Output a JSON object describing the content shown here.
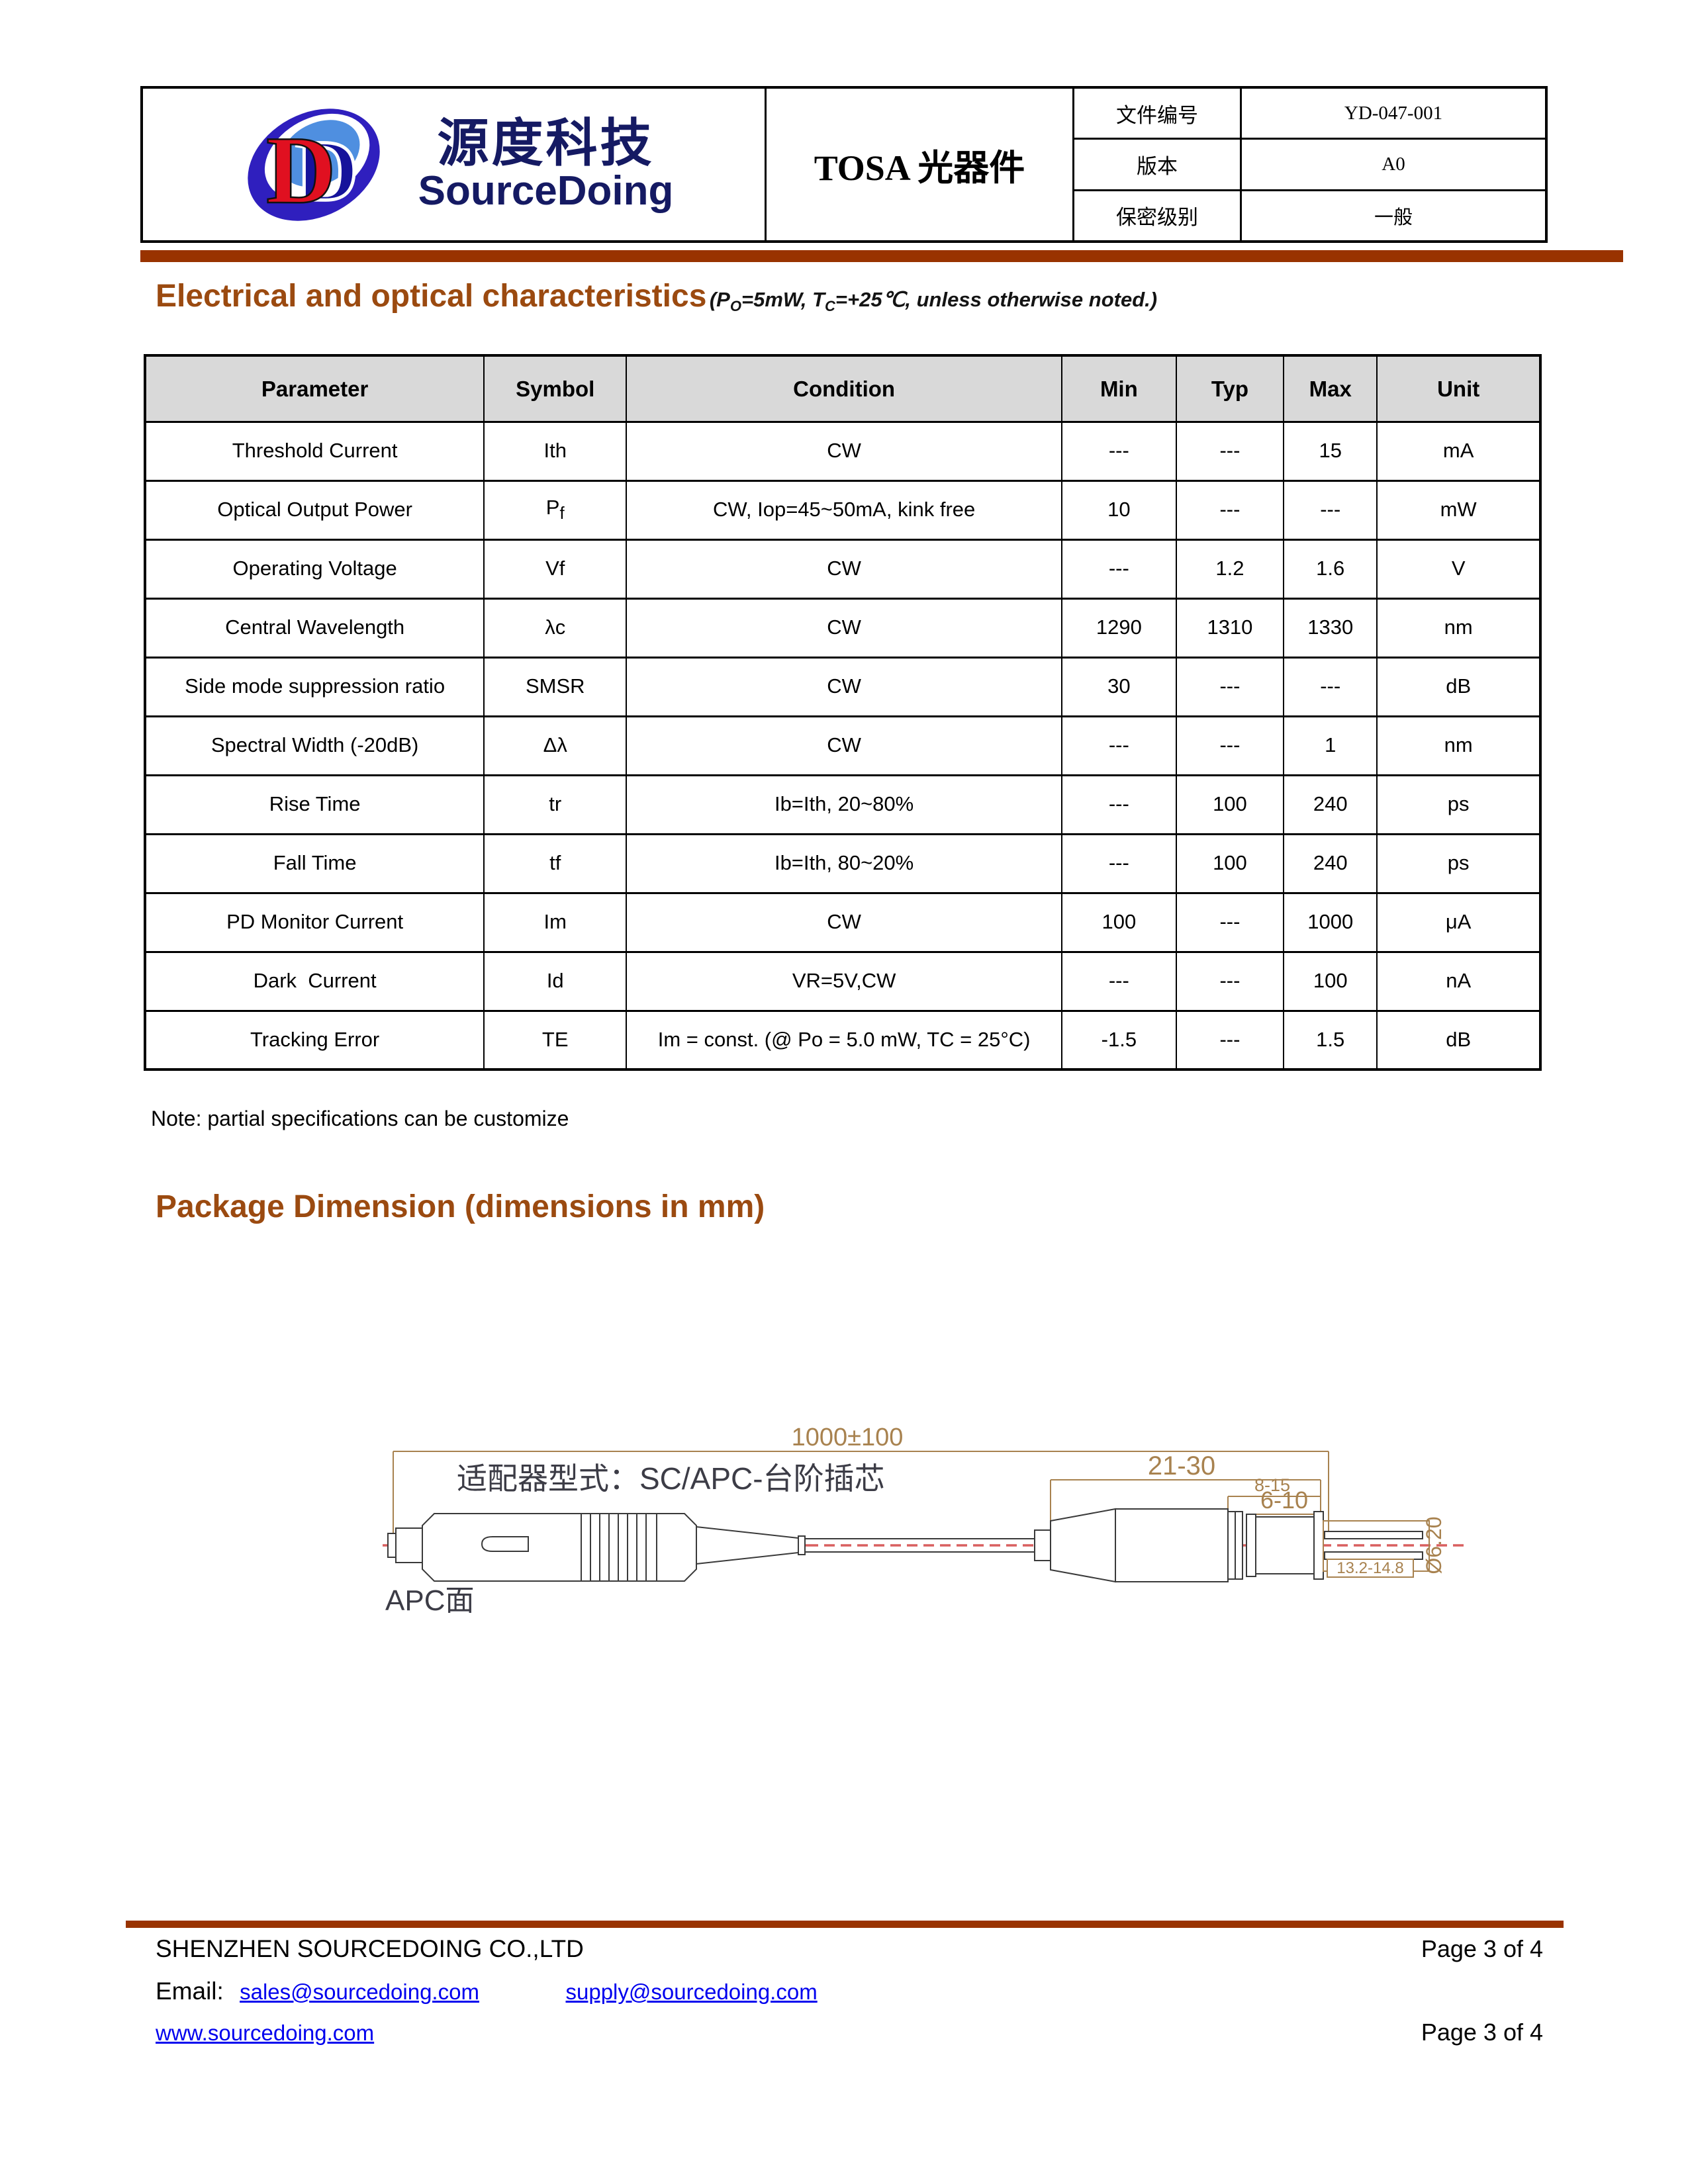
{
  "header": {
    "logo": {
      "d1": "D",
      "d2": "D",
      "brand_cn": "源度科技",
      "brand_en": "SourceDoing"
    },
    "doc_title": "TOSA 光器件",
    "fields": [
      {
        "label": "文件编号",
        "value": "YD-047-001"
      },
      {
        "label": "版本",
        "value": "A0"
      },
      {
        "label": "保密级别",
        "value": "一般"
      }
    ]
  },
  "section1": {
    "title": "Electrical and optical characteristics",
    "sub_p1": "(P",
    "sub_s1": "O",
    "sub_p2": "=5mW, T",
    "sub_s2": "C",
    "sub_p3": "=+25℃, unless otherwise noted.)"
  },
  "spec_table": {
    "headers": [
      "Parameter",
      "Symbol",
      "Condition",
      "Min",
      "Typ",
      "Max",
      "Unit"
    ],
    "rows": [
      [
        "Threshold Current",
        "Ith",
        "CW",
        "---",
        "---",
        "15",
        "mA"
      ],
      [
        "Optical Output Power",
        "P_f",
        "CW, Iop=45~50mA, kink free",
        "10",
        "---",
        "---",
        "mW"
      ],
      [
        "Operating Voltage",
        "Vf",
        "CW",
        "---",
        "1.2",
        "1.6",
        "V"
      ],
      [
        "Central Wavelength",
        "λc",
        "CW",
        "1290",
        "1310",
        "1330",
        "nm"
      ],
      [
        "Side mode suppression ratio",
        "SMSR",
        "CW",
        "30",
        "---",
        "---",
        "dB"
      ],
      [
        "Spectral Width (-20dB)",
        "Δλ",
        "CW",
        "---",
        "---",
        "1",
        "nm"
      ],
      [
        "Rise Time",
        "tr",
        "Ib=Ith, 20~80%",
        "---",
        "100",
        "240",
        "ps"
      ],
      [
        "Fall Time",
        "tf",
        "Ib=Ith, 80~20%",
        "---",
        "100",
        "240",
        "ps"
      ],
      [
        "PD Monitor Current",
        "Im",
        "CW",
        "100",
        "---",
        "1000",
        "μA"
      ],
      [
        "Dark  Current",
        "Id",
        "VR=5V,CW",
        "---",
        "---",
        "100",
        "nA"
      ],
      [
        "Tracking Error",
        "TE",
        "Im = const. (@ Po = 5.0 mW, TC = 25°C)",
        "-1.5",
        "---",
        "1.5",
        "dB"
      ]
    ],
    "note": "Note: partial specifications can be customize"
  },
  "section2": {
    "title": "Package Dimension (dimensions in mm)"
  },
  "drawing": {
    "adapter_label": "适配器型式：SC/APC-台阶插芯",
    "apc_label": "APC面",
    "dim_overall": "1000±100",
    "dim_tosa": "21-30",
    "dim_8_15": "8-15",
    "dim_6_10": "6-10",
    "dim_pins": "13.2-14.8",
    "dim_diameter": "Ø6.20"
  },
  "footer": {
    "company": "SHENZHEN SOURCEDOING CO.,LTD",
    "page": "Page 3 of 4",
    "email_label": "Email:",
    "email1": "sales@sourcedoing.com",
    "email2": "supply@sourcedoing.com",
    "website": "www.sourcedoing.com",
    "page2": "Page 3 of 4"
  },
  "colors": {
    "accent_brown": "#9b4a10",
    "bar_brown": "#993300",
    "link_blue": "#0000ee",
    "dim_tan": "#a8824f",
    "centerline_red": "#d95f5f",
    "table_header_gray": "#d9d9d9",
    "logo_navy": "#151a63",
    "logo_red": "#e01020",
    "logo_blue": "#2f1fbe"
  }
}
